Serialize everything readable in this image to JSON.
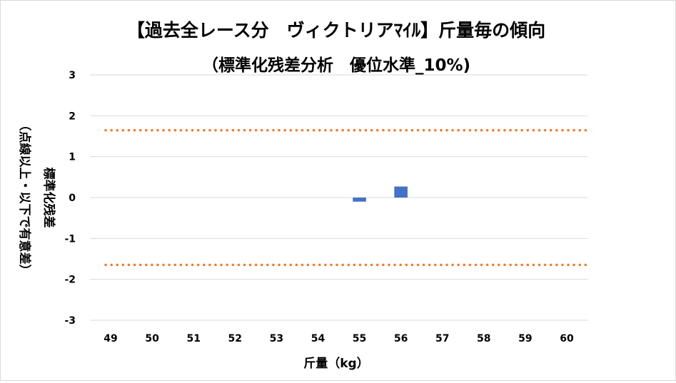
{
  "chart_data": {
    "type": "bar",
    "title": "【過去全レース分　ヴィクトリアﾏｲﾙ】斤量毎の傾向",
    "subtitle": "（標準化残差分析　優位水準_10%)",
    "xlabel": "斤量（kg）",
    "ylabel_main": "標準化残差",
    "ylabel_sub": "（点線以上・以下で有意差）",
    "categories": [
      "49",
      "50",
      "51",
      "52",
      "53",
      "54",
      "55",
      "56",
      "57",
      "58",
      "59",
      "60"
    ],
    "series": [
      {
        "values": [
          null,
          null,
          null,
          null,
          null,
          null,
          -0.1,
          0.27,
          null,
          null,
          null,
          null
        ],
        "color": "#4472c4"
      }
    ],
    "threshold_lines": [
      1.645,
      -1.645
    ],
    "threshold_color": "#ed7d31",
    "ylim": [
      -3,
      3
    ],
    "yticks": [
      3,
      2,
      1,
      0,
      -1,
      -2,
      -3
    ],
    "grid": true,
    "legend": "none"
  }
}
